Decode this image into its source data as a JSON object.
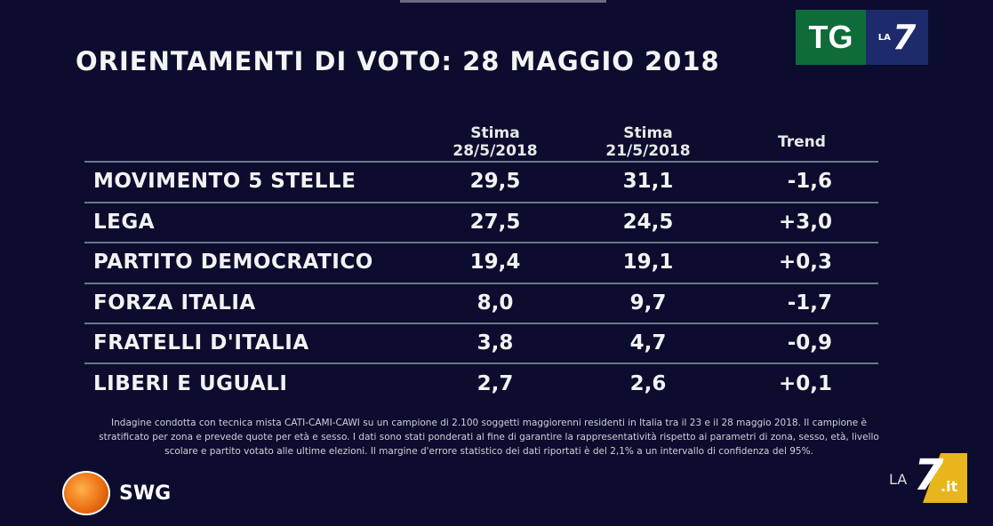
{
  "title": "ORIENTAMENTI DI VOTO: 28 MAGGIO 2018",
  "logos": {
    "tg": "TG",
    "la": "LA",
    "seven": "7",
    "swg": "SWG",
    "la7it_la": "LA",
    "la7it_seven": "7",
    "la7it_it": ".it"
  },
  "colors": {
    "background": "#0c0c2e",
    "tg_green": "#0f6b3a",
    "tg_blue": "#1d2a6b",
    "la7_yellow": "#e8b51c"
  },
  "chart_data": {
    "type": "table",
    "title": "ORIENTAMENTI DI VOTO: 28 MAGGIO 2018",
    "columns": [
      {
        "line1": "Stima",
        "line2": "28/5/2018"
      },
      {
        "line1": "Stima",
        "line2": "21/5/2018"
      },
      {
        "line1": "Trend",
        "line2": ""
      }
    ],
    "rows": [
      {
        "party": "MOVIMENTO 5 STELLE",
        "stima_28": "29,5",
        "stima_21": "31,1",
        "trend": "-1,6"
      },
      {
        "party": "LEGA",
        "stima_28": "27,5",
        "stima_21": "24,5",
        "trend": "+3,0"
      },
      {
        "party": "PARTITO DEMOCRATICO",
        "stima_28": "19,4",
        "stima_21": "19,1",
        "trend": "+0,3"
      },
      {
        "party": "FORZA ITALIA",
        "stima_28": "8,0",
        "stima_21": "9,7",
        "trend": "-1,7"
      },
      {
        "party": "FRATELLI D'ITALIA",
        "stima_28": "3,8",
        "stima_21": "4,7",
        "trend": "-0,9"
      },
      {
        "party": "LIBERI E UGUALI",
        "stima_28": "2,7",
        "stima_21": "2,6",
        "trend": "+0,1"
      }
    ]
  },
  "footnote": "Indagine condotta con tecnica mista CATI-CAMI-CAWI su un campione di 2.100 soggetti maggiorenni residenti in Italia tra il 23 e il 28 maggio 2018. Il campione è stratificato per zona e prevede quote per età e sesso. I dati sono stati ponderati al fine di garantire la rappresentatività rispetto ai parametri di zona, sesso, età, livello scolare e partito votato alle ultime elezioni. Il margine d'errore statistico dei dati riportati è del 2,1% a un intervallo di confidenza del 95%."
}
